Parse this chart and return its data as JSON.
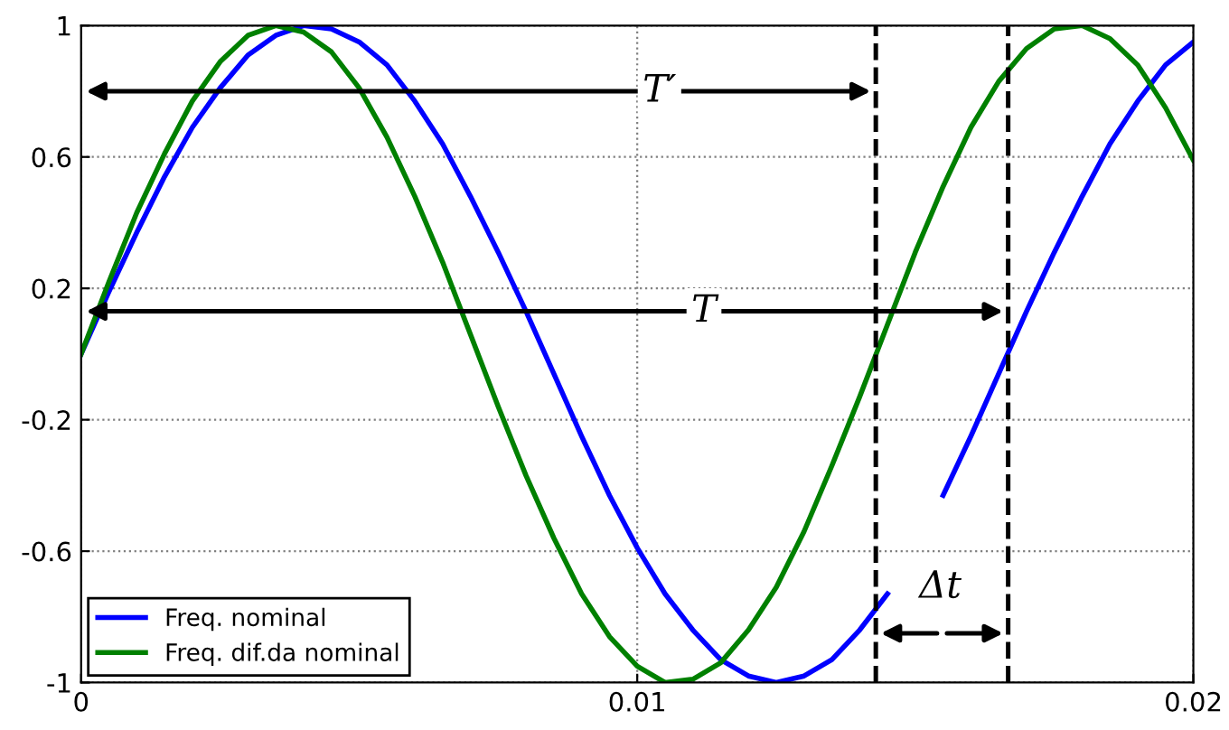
{
  "chart_data": {
    "type": "line",
    "x": [
      0,
      0.0005,
      0.001,
      0.0015,
      0.002,
      0.0025,
      0.003,
      0.0035,
      0.004,
      0.0045,
      0.005,
      0.0055,
      0.006,
      0.0065,
      0.007,
      0.0075,
      0.008,
      0.0085,
      0.009,
      0.0095,
      0.01,
      0.0105,
      0.011,
      0.0115,
      0.012,
      0.0125,
      0.013,
      0.0135,
      0.014,
      0.0145,
      0.015,
      0.0155,
      0.016,
      0.0165,
      0.017,
      0.0175,
      0.018,
      0.0185,
      0.019,
      0.0195,
      0.02
    ],
    "series": [
      {
        "name": "Freq. nominal",
        "color": "#0000ff",
        "values": [
          0,
          0.19,
          0.37,
          0.54,
          0.69,
          0.81,
          0.91,
          0.97,
          1.0,
          0.99,
          0.95,
          0.88,
          0.77,
          0.64,
          0.48,
          0.31,
          0.13,
          -0.06,
          -0.25,
          -0.43,
          -0.59,
          -0.73,
          -0.84,
          -0.93,
          -0.98,
          -1.0,
          -0.98,
          -0.93,
          -0.84,
          -0.73,
          null,
          -0.43,
          -0.25,
          -0.06,
          0.13,
          0.31,
          0.48,
          0.64,
          0.77,
          0.88,
          0.95
        ]
      },
      {
        "name": "Freq. dif.da nominal",
        "color": "#008000",
        "values": [
          0,
          0.22,
          0.43,
          0.61,
          0.77,
          0.89,
          0.97,
          1.0,
          0.98,
          0.92,
          0.81,
          0.66,
          0.48,
          0.28,
          0.06,
          -0.16,
          -0.37,
          -0.56,
          -0.73,
          -0.86,
          -0.95,
          -1.0,
          -0.99,
          -0.94,
          -0.84,
          -0.71,
          -0.54,
          -0.34,
          -0.13,
          0.09,
          0.31,
          0.51,
          0.69,
          0.83,
          0.93,
          0.99,
          1.0,
          0.96,
          0.88,
          0.75,
          0.59
        ]
      }
    ],
    "xlim": [
      0,
      0.02
    ],
    "xticks": [
      0,
      0.01,
      0.02
    ],
    "ylim": [
      -1,
      1
    ],
    "yticks": [
      -1,
      -0.6,
      -0.2,
      0.2,
      0.6,
      1
    ],
    "grid": true,
    "legend": "bottom left",
    "marker": "none",
    "line_style": "solid",
    "ref_lines": [
      {
        "axis": "x",
        "value": 0.01429,
        "label": null,
        "color": "#000000",
        "line_style": "dashed"
      },
      {
        "axis": "x",
        "value": 0.01667,
        "label": null,
        "color": "#000000",
        "line_style": "dashed"
      }
    ],
    "annotations": [
      {
        "text": "T′",
        "x": 0.0104,
        "y": 0.8
      },
      {
        "text": "T",
        "x": 0.0112,
        "y": 0.13
      },
      {
        "text": "Δt",
        "x": 0.01545,
        "y": -0.71
      }
    ]
  }
}
